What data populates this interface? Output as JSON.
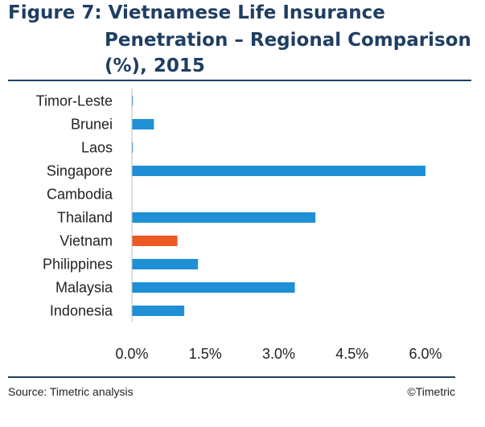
{
  "title": {
    "line1": "Figure 7: Vietnamese Life Insurance",
    "line2": "Penetration – Regional Comparison",
    "line3": "(%), 2015"
  },
  "footer": {
    "source": "Source: Timetric analysis",
    "copyright": "©Timetric"
  },
  "chart_data": {
    "type": "bar",
    "orientation": "horizontal",
    "categories": [
      "Timor-Leste",
      "Brunei",
      "Laos",
      "Singapore",
      "Cambodia",
      "Thailand",
      "Vietnam",
      "Philippines",
      "Malaysia",
      "Indonesia"
    ],
    "values": [
      0.02,
      0.45,
      0.02,
      6.0,
      0.0,
      3.75,
      0.93,
      1.35,
      3.33,
      1.07
    ],
    "highlight": "Vietnam",
    "colors": {
      "default": "#1f8fd6",
      "highlight": "#ee5a24"
    },
    "xlim": [
      0,
      6.0
    ],
    "ticks": [
      "0.0%",
      "1.5%",
      "3.0%",
      "4.5%",
      "6.0%"
    ],
    "tick_values": [
      0,
      1.5,
      3.0,
      4.5,
      6.0
    ],
    "grid": false
  }
}
